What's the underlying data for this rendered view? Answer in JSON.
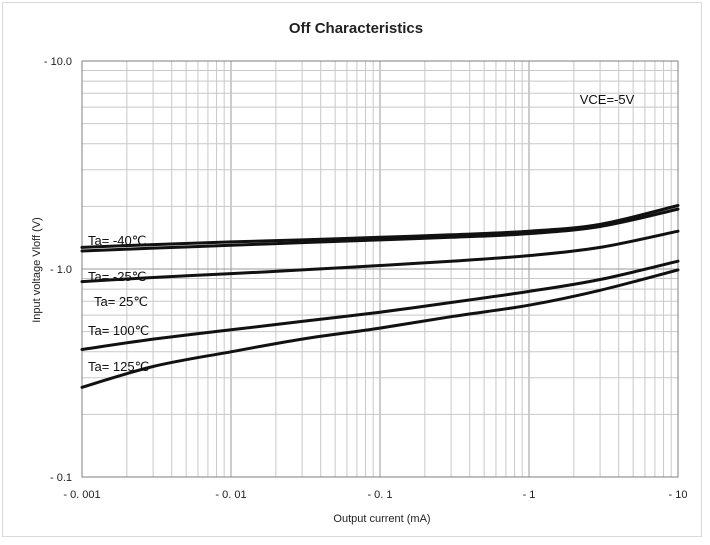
{
  "chart_data": {
    "type": "line",
    "title": "Off Characteristics",
    "xlabel": "Output current (mA)",
    "ylabel": "Input voltage Vloff (V)",
    "x_scale": "log",
    "y_scale": "log",
    "xlim": [
      0.001,
      10
    ],
    "ylim": [
      0.1,
      10
    ],
    "x_ticks": [
      {
        "value": 0.001,
        "label": "- 0. 001"
      },
      {
        "value": 0.01,
        "label": "- 0. 01"
      },
      {
        "value": 0.1,
        "label": "- 0. 1"
      },
      {
        "value": 1,
        "label": "- 1"
      },
      {
        "value": 10,
        "label": "- 10"
      }
    ],
    "y_ticks": [
      {
        "value": 10,
        "label": "- 10.0"
      },
      {
        "value": 1,
        "label": "- 1.0"
      },
      {
        "value": 0.1,
        "label": "- 0.1"
      }
    ],
    "grid": true,
    "annotation": "VCE=-5V",
    "series": [
      {
        "name": "Ta= -40℃",
        "x": [
          0.001,
          0.003,
          0.01,
          0.03,
          0.1,
          0.3,
          1,
          3,
          10
        ],
        "y": [
          1.27,
          1.31,
          1.35,
          1.38,
          1.42,
          1.46,
          1.52,
          1.64,
          2.02
        ]
      },
      {
        "name": "Ta= -25℃",
        "x": [
          0.001,
          0.003,
          0.01,
          0.03,
          0.1,
          0.3,
          1,
          3,
          10
        ],
        "y": [
          1.22,
          1.26,
          1.3,
          1.34,
          1.38,
          1.42,
          1.48,
          1.6,
          1.94
        ]
      },
      {
        "name": "Ta= 25℃",
        "x": [
          0.001,
          0.003,
          0.01,
          0.03,
          0.1,
          0.3,
          1,
          3,
          10
        ],
        "y": [
          0.87,
          0.91,
          0.95,
          0.99,
          1.04,
          1.09,
          1.16,
          1.27,
          1.52
        ]
      },
      {
        "name": "Ta= 100℃",
        "x": [
          0.001,
          0.003,
          0.01,
          0.03,
          0.1,
          0.3,
          1,
          3,
          10
        ],
        "y": [
          0.41,
          0.46,
          0.51,
          0.56,
          0.62,
          0.69,
          0.78,
          0.89,
          1.09
        ]
      },
      {
        "name": "Ta= 125℃",
        "x": [
          0.001,
          0.003,
          0.01,
          0.03,
          0.1,
          0.3,
          1,
          3,
          10
        ],
        "y": [
          0.27,
          0.34,
          0.4,
          0.46,
          0.52,
          0.59,
          0.67,
          0.79,
          0.99
        ]
      }
    ]
  }
}
